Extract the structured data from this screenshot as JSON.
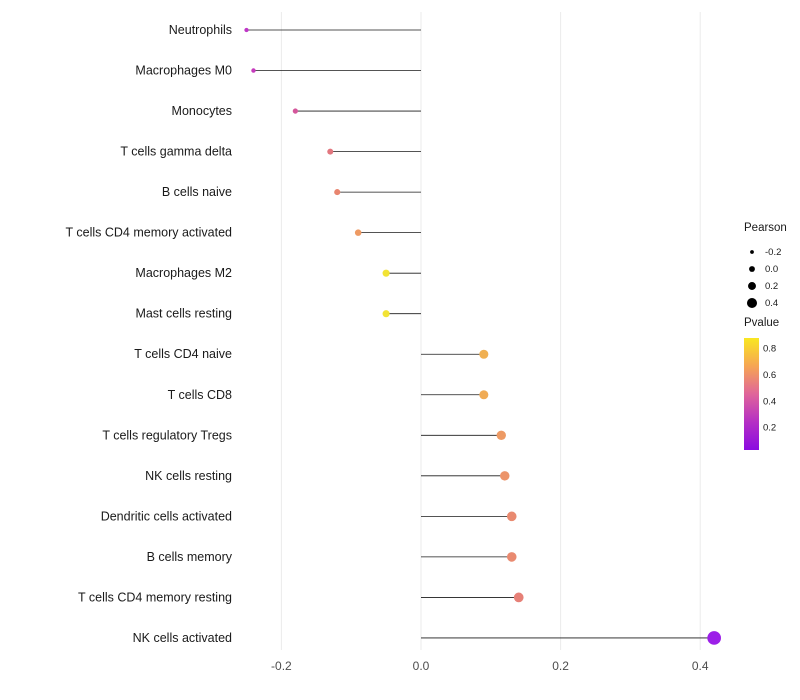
{
  "chart_data": {
    "type": "lollipop",
    "title": "",
    "xlabel": "",
    "ylabel": "",
    "x_ticks": [
      -0.2,
      0.0,
      0.2,
      0.4
    ],
    "xlim": [
      -0.3,
      0.47
    ],
    "grid": "light vertical gridlines at x ticks",
    "legend_position": "right",
    "rows": [
      {
        "name": "Neutrophils",
        "pearson": -0.25,
        "pvalue": 0.25,
        "color": "#bf36c7"
      },
      {
        "name": "Macrophages M0",
        "pearson": -0.24,
        "pvalue": 0.28,
        "color": "#c63bbd"
      },
      {
        "name": "Monocytes",
        "pearson": -0.18,
        "pvalue": 0.38,
        "color": "#d4569b"
      },
      {
        "name": "T cells gamma delta",
        "pearson": -0.13,
        "pvalue": 0.5,
        "color": "#e2777f"
      },
      {
        "name": "B cells naive",
        "pearson": -0.12,
        "pvalue": 0.55,
        "color": "#e8856f"
      },
      {
        "name": "T cells CD4 memory activated",
        "pearson": -0.09,
        "pvalue": 0.6,
        "color": "#ee9a63"
      },
      {
        "name": "Macrophages M2",
        "pearson": -0.05,
        "pvalue": 0.8,
        "color": "#f2e334"
      },
      {
        "name": "Mast cells resting",
        "pearson": -0.05,
        "pvalue": 0.8,
        "color": "#f2e334"
      },
      {
        "name": "T cells CD4 naive",
        "pearson": 0.09,
        "pvalue": 0.62,
        "color": "#f0b052"
      },
      {
        "name": "T cells CD8",
        "pearson": 0.09,
        "pvalue": 0.62,
        "color": "#f0ab55"
      },
      {
        "name": "T cells regulatory Tregs",
        "pearson": 0.115,
        "pvalue": 0.55,
        "color": "#ed9a64"
      },
      {
        "name": "NK cells resting",
        "pearson": 0.12,
        "pvalue": 0.53,
        "color": "#ec946a"
      },
      {
        "name": "Dendritic cells activated",
        "pearson": 0.13,
        "pvalue": 0.5,
        "color": "#e98a70"
      },
      {
        "name": "B cells memory",
        "pearson": 0.13,
        "pvalue": 0.5,
        "color": "#e98a70"
      },
      {
        "name": "T cells CD4 memory resting",
        "pearson": 0.14,
        "pvalue": 0.45,
        "color": "#e68077"
      },
      {
        "name": "NK cells activated",
        "pearson": 0.42,
        "pvalue": 0.05,
        "color": "#9c1fe8"
      }
    ],
    "legend": {
      "size_title": "Pearson",
      "size_items": [
        {
          "label": "-0.2",
          "value": -0.2
        },
        {
          "label": "0.0",
          "value": 0.0
        },
        {
          "label": "0.2",
          "value": 0.2
        },
        {
          "label": "0.4",
          "value": 0.4
        }
      ],
      "color_title": "Pvalue",
      "color_ticks": [
        "0.8",
        "0.6",
        "0.4",
        "0.2"
      ],
      "gradient_stops": [
        "#f9e721",
        "#f6a553",
        "#e0659a",
        "#b52fc4",
        "#8b0be0"
      ]
    }
  }
}
